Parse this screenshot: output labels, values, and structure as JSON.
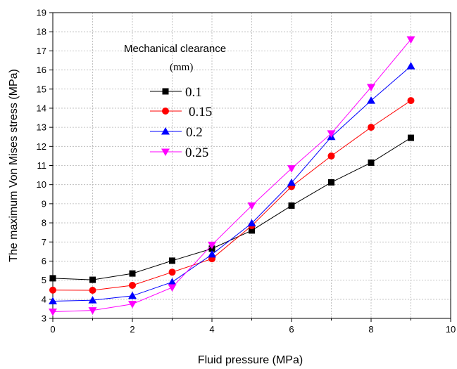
{
  "chart_data": {
    "type": "line",
    "title": "",
    "xlabel": "Fluid pressure (MPa)",
    "ylabel": "The maximum Von Mises stress (MPa)",
    "xlim": [
      0,
      10
    ],
    "ylim": [
      3,
      19
    ],
    "xticks": [
      0,
      2,
      4,
      6,
      8,
      10
    ],
    "yticks": [
      3,
      4,
      5,
      6,
      7,
      8,
      9,
      10,
      11,
      12,
      13,
      14,
      15,
      16,
      17,
      18,
      19
    ],
    "grid": true,
    "legend_placement": "top-left",
    "legend_title": "Mechanical clearance",
    "legend_unit": "(mm)",
    "x": [
      0,
      1,
      2,
      3,
      4,
      5,
      6,
      7,
      8,
      9
    ],
    "series": [
      {
        "name": "0.1",
        "color": "#000000",
        "marker": "square",
        "values": [
          5.1,
          5.02,
          5.35,
          6.02,
          6.65,
          7.6,
          8.9,
          10.12,
          11.15,
          12.45
        ]
      },
      {
        "name": "0.15",
        "color": "#ff0000",
        "marker": "circle",
        "values": [
          4.48,
          4.47,
          4.73,
          5.42,
          6.12,
          7.85,
          9.9,
          11.5,
          13.0,
          14.4
        ]
      },
      {
        "name": "0.2",
        "color": "#0000ff",
        "marker": "triangle-up",
        "values": [
          3.9,
          3.95,
          4.18,
          4.9,
          6.35,
          7.98,
          10.1,
          12.5,
          14.4,
          16.2
        ]
      },
      {
        "name": "0.25",
        "color": "#ff00ff",
        "marker": "triangle-down",
        "values": [
          3.35,
          3.42,
          3.75,
          4.62,
          6.85,
          8.9,
          10.85,
          12.68,
          15.1,
          17.6
        ]
      }
    ]
  }
}
